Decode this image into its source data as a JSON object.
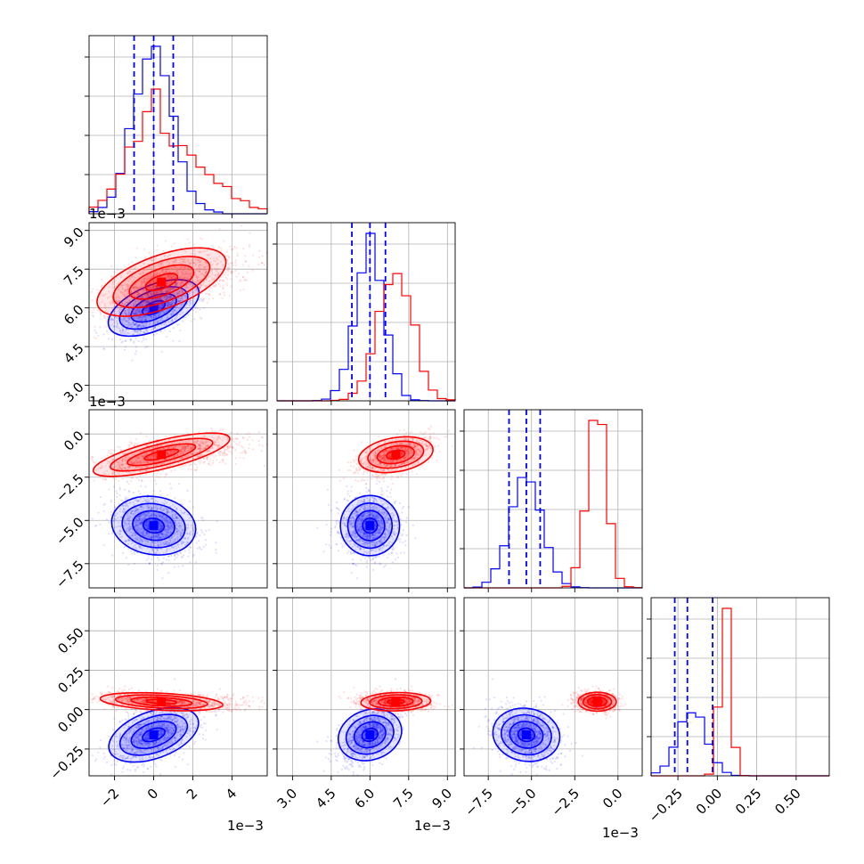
{
  "colors": {
    "series_a": "#ff0000",
    "series_b": "#0000ff",
    "grid": "#b0b0b0",
    "axis": "#000000"
  },
  "exponent_labels": [
    "1e−3",
    "1e−3",
    "1e−3",
    "1e−3",
    "1e−3"
  ],
  "chart_data": {
    "type": "corner",
    "variables": 4,
    "grid": true,
    "series": [
      {
        "color": "#ff0000"
      },
      {
        "color": "#0000ff"
      }
    ],
    "axes": [
      {
        "range": [
          -3.3,
          5.8
        ],
        "ticks": [
          -2,
          0,
          2,
          4
        ],
        "tick_labels": [
          "−2",
          "0",
          "2",
          "4"
        ],
        "scale": "1e-3"
      },
      {
        "range": [
          2.4,
          9.3
        ],
        "ticks": [
          3.0,
          4.5,
          6.0,
          7.5,
          9.0
        ],
        "tick_labels": [
          "3.0",
          "4.5",
          "6.0",
          "7.5",
          "9.0"
        ],
        "scale": "1e-3"
      },
      {
        "range": [
          -8.9,
          1.4
        ],
        "ticks": [
          -7.5,
          -5.0,
          -2.5,
          0.0
        ],
        "tick_labels": [
          "−7.5",
          "−5.0",
          "−2.5",
          "0.0"
        ],
        "scale": "1e-3"
      },
      {
        "range": [
          -0.42,
          0.71
        ],
        "ticks": [
          -0.25,
          0.0,
          0.25,
          0.5
        ],
        "tick_labels": [
          "−0.25",
          "0.00",
          "0.25",
          "0.50"
        ],
        "scale": ""
      }
    ],
    "quantiles": {
      "series_b": [
        [
          -1.0,
          0.0,
          1.0
        ],
        [
          5.3,
          6.0,
          6.6
        ],
        [
          -6.3,
          -5.3,
          -4.5
        ],
        [
          -0.27,
          -0.19,
          -0.03
        ]
      ]
    },
    "distributions": {
      "series_a": {
        "means": [
          0.4,
          7.0,
          -1.2,
          0.05
        ],
        "sds": [
          1.4,
          0.65,
          0.55,
          0.03
        ],
        "correlations": [
          [
            0,
            1,
            0.6
          ],
          [
            0,
            2,
            0.7
          ],
          [
            1,
            2,
            0.3
          ],
          [
            0,
            3,
            -0.3
          ],
          [
            1,
            3,
            0.1
          ]
        ]
      },
      "series_b": {
        "means": [
          0.0,
          6.0,
          -5.3,
          -0.16
        ],
        "sds": [
          1.0,
          0.55,
          0.9,
          0.09
        ],
        "correlations": [
          [
            0,
            1,
            0.6
          ],
          [
            0,
            2,
            -0.2
          ],
          [
            1,
            2,
            0.1
          ],
          [
            0,
            3,
            0.5
          ],
          [
            1,
            3,
            0.35
          ],
          [
            2,
            3,
            -0.2
          ]
        ]
      }
    }
  }
}
